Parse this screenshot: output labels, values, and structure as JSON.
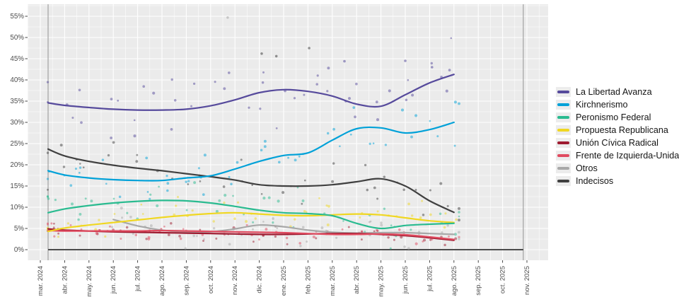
{
  "legend": {
    "items": [
      {
        "label": "La Libertad Avanza",
        "color": "#564a9c"
      },
      {
        "label": "Kirchnerismo",
        "color": "#00a1d8"
      },
      {
        "label": "Peronismo Federal",
        "color": "#2abb90"
      },
      {
        "label": "Propuesta Republicana",
        "color": "#f0d722"
      },
      {
        "label": "Unión Cívica Radical",
        "color": "#9e1b30"
      },
      {
        "label": "Frente de Izquierda-Unidad",
        "color": "#e04a5f"
      },
      {
        "label": "Otros",
        "color": "#a8a8a8"
      },
      {
        "label": "Indecisos",
        "color": "#404040"
      }
    ]
  },
  "chart_data": {
    "type": "line",
    "style": "scatter points of individual polls with smoothed trend lines, gray panel, white gridlines",
    "x": [
      "mar. 2024",
      "abr. 2024",
      "may. 2024",
      "jun. 2024",
      "jul. 2024",
      "ago. 2024",
      "sep. 2024",
      "oct. 2024",
      "nov. 2024",
      "dic. 2024",
      "ene. 2025",
      "feb. 2025",
      "mar. 2025",
      "abr. 2025",
      "may. 2025",
      "jun. 2025",
      "jul. 2025",
      "ago. 2025"
    ],
    "x_axis_ticks": [
      "mar. 2024",
      "abr. 2024",
      "may. 2024",
      "jun. 2024",
      "jul. 2024",
      "ago. 2024",
      "sep. 2024",
      "oct. 2024",
      "nov. 2024",
      "dic. 2024",
      "ene. 2025",
      "feb. 2025",
      "mar. 2025",
      "abr. 2025",
      "may. 2025",
      "jun. 2025",
      "jul. 2025",
      "ago. 2025",
      "sep. 2025",
      "oct. 2025",
      "nov. 2025"
    ],
    "y_axis": {
      "min": 0,
      "max": 55,
      "tick_step": 5,
      "format": "percent",
      "tick_labels": [
        "0%",
        "5%",
        "10%",
        "15%",
        "20%",
        "25%",
        "30%",
        "35%",
        "40%",
        "45%",
        "50%",
        "55%"
      ]
    },
    "legend_position": "right",
    "grid": true,
    "series": [
      {
        "name": "La Libertad Avanza",
        "color": "#564a9c",
        "values": [
          34.6,
          34.0,
          33.5,
          33.1,
          32.9,
          32.9,
          33.1,
          33.9,
          35.3,
          37.0,
          37.7,
          37.3,
          36.2,
          34.3,
          33.8,
          36.5,
          39.3,
          41.3
        ]
      },
      {
        "name": "Kirchnerismo",
        "color": "#00a1d8",
        "values": [
          18.6,
          17.6,
          16.9,
          16.5,
          16.3,
          16.3,
          16.9,
          17.4,
          19.0,
          20.8,
          22.2,
          22.8,
          25.8,
          28.5,
          28.7,
          27.5,
          28.3,
          30.0
        ]
      },
      {
        "name": "Peronismo Federal",
        "color": "#2abb90",
        "values": [
          8.7,
          9.6,
          10.4,
          11.0,
          11.4,
          11.6,
          11.5,
          11.0,
          10.2,
          9.3,
          8.7,
          8.5,
          8.0,
          6.2,
          5.0,
          5.7,
          6.0,
          6.2
        ]
      },
      {
        "name": "Propuesta Republicana",
        "color": "#f0d722",
        "values": [
          4.3,
          5.1,
          5.8,
          6.4,
          7.0,
          7.6,
          8.1,
          8.5,
          8.7,
          8.4,
          8.1,
          8.0,
          8.2,
          8.4,
          8.2,
          7.5,
          6.8,
          6.4
        ]
      },
      {
        "name": "Unión Cívica Radical",
        "color": "#9e1b30",
        "values": [
          4.9,
          4.6,
          4.4,
          4.2,
          4.1,
          4.0,
          3.9,
          3.8,
          3.7,
          3.6,
          3.6,
          3.7,
          3.8,
          3.8,
          3.6,
          3.3,
          2.8,
          2.2
        ]
      },
      {
        "name": "Frente de Izquierda-Unidad",
        "color": "#e04a5f",
        "values": [
          4.5,
          4.4,
          4.4,
          4.4,
          4.4,
          4.5,
          4.4,
          4.3,
          4.2,
          4.1,
          4.0,
          3.8,
          3.6,
          3.6,
          3.7,
          3.5,
          3.0,
          2.4
        ]
      },
      {
        "name": "Otros",
        "color": "#a8a8a8",
        "values": [
          null,
          null,
          null,
          7.1,
          5.6,
          4.6,
          4.1,
          4.2,
          4.9,
          5.8,
          5.4,
          4.6,
          4.1,
          3.9,
          4.0,
          4.0,
          3.8,
          3.6
        ]
      },
      {
        "name": "Indecisos",
        "color": "#404040",
        "values": [
          23.7,
          22.1,
          20.8,
          19.9,
          19.2,
          18.6,
          17.9,
          17.2,
          16.4,
          15.3,
          15.0,
          15.0,
          15.3,
          16.0,
          16.7,
          15.0,
          11.5,
          8.8
        ]
      }
    ],
    "scatter_outliers": [
      {
        "series": "Otros",
        "month_index": 7.7,
        "value": 54.7
      },
      {
        "series": "Indecisos",
        "month_index": 9.1,
        "value": 46.2
      },
      {
        "series": "Indecisos",
        "month_index": 9.7,
        "value": 45.6
      },
      {
        "series": "Indecisos",
        "month_index": 11.05,
        "value": 47.5
      },
      {
        "series": "La Libertad Avanza",
        "month_index": 12.5,
        "value": 44.4
      },
      {
        "series": "La Libertad Avanza",
        "month_index": 15.0,
        "value": 44.5
      },
      {
        "series": "La Libertad Avanza",
        "month_index": 16.1,
        "value": 43.0
      }
    ],
    "vertical_markers": [
      {
        "month_index": 0.32
      },
      {
        "month_index": 19.85
      }
    ],
    "zero_baseline": true
  },
  "colors": {
    "panel_background": "#ebebeb",
    "gridline": "#ffffff",
    "axis_text": "#4d4d4d",
    "marker_line": "#9a9a9a",
    "zero_line": "#4b4b4b"
  }
}
